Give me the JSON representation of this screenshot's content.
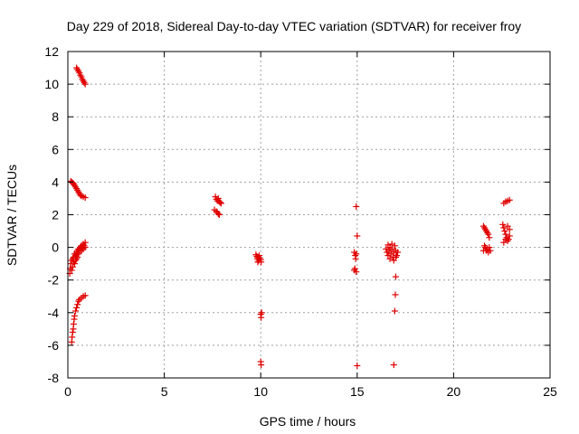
{
  "chart_data": {
    "type": "scatter",
    "title": "Day 229 of 2018, Sidereal Day-to-day VTEC variation (SDTVAR) for receiver froy",
    "xlabel": "GPS time / hours",
    "ylabel": "SDTVAR / TECUs",
    "xlim": [
      0,
      25
    ],
    "ylim": [
      -8,
      12
    ],
    "xticks": [
      0,
      5,
      10,
      15,
      20,
      25
    ],
    "yticks": [
      -8,
      -6,
      -4,
      -2,
      0,
      2,
      4,
      6,
      8,
      10,
      12
    ],
    "xtick_labels": [
      "0",
      "5",
      "10",
      "15",
      "20",
      "25"
    ],
    "ytick_labels": [
      "-8",
      "-6",
      "-4",
      "-2",
      "0",
      "2",
      "4",
      "6",
      "8",
      "10",
      "12"
    ],
    "grid": true,
    "marker": "+",
    "color": "#e00000",
    "series": [
      {
        "name": "froy",
        "points": [
          [
            0.45,
            11.0
          ],
          [
            0.5,
            10.9
          ],
          [
            0.55,
            10.8
          ],
          [
            0.6,
            10.7
          ],
          [
            0.65,
            10.55
          ],
          [
            0.7,
            10.45
          ],
          [
            0.75,
            10.3
          ],
          [
            0.8,
            10.2
          ],
          [
            0.85,
            10.1
          ],
          [
            0.9,
            10.0
          ],
          [
            0.15,
            4.05
          ],
          [
            0.2,
            4.0
          ],
          [
            0.25,
            3.95
          ],
          [
            0.3,
            3.9
          ],
          [
            0.35,
            3.8
          ],
          [
            0.4,
            3.7
          ],
          [
            0.45,
            3.6
          ],
          [
            0.5,
            3.5
          ],
          [
            0.55,
            3.4
          ],
          [
            0.6,
            3.3
          ],
          [
            0.65,
            3.2
          ],
          [
            0.7,
            3.15
          ],
          [
            0.8,
            3.1
          ],
          [
            0.9,
            3.05
          ],
          [
            0.1,
            -1.6
          ],
          [
            0.12,
            -1.3
          ],
          [
            0.15,
            -1.0
          ],
          [
            0.18,
            -0.8
          ],
          [
            0.2,
            -1.4
          ],
          [
            0.25,
            -1.2
          ],
          [
            0.3,
            -0.9
          ],
          [
            0.3,
            -0.6
          ],
          [
            0.35,
            -1.0
          ],
          [
            0.4,
            -0.5
          ],
          [
            0.4,
            -0.8
          ],
          [
            0.45,
            -0.3
          ],
          [
            0.5,
            -0.6
          ],
          [
            0.5,
            -0.2
          ],
          [
            0.55,
            -0.4
          ],
          [
            0.6,
            -0.1
          ],
          [
            0.6,
            -0.3
          ],
          [
            0.65,
            0.0
          ],
          [
            0.7,
            -0.2
          ],
          [
            0.7,
            0.1
          ],
          [
            0.75,
            0.0
          ],
          [
            0.8,
            0.2
          ],
          [
            0.8,
            -0.1
          ],
          [
            0.85,
            0.1
          ],
          [
            0.9,
            0.3
          ],
          [
            0.9,
            0.0
          ],
          [
            0.25,
            -0.7
          ],
          [
            0.35,
            -0.4
          ],
          [
            0.45,
            -0.7
          ],
          [
            0.55,
            -0.1
          ],
          [
            0.2,
            -5.8
          ],
          [
            0.22,
            -5.5
          ],
          [
            0.25,
            -5.2
          ],
          [
            0.28,
            -5.0
          ],
          [
            0.3,
            -4.7
          ],
          [
            0.33,
            -4.4
          ],
          [
            0.35,
            -4.2
          ],
          [
            0.4,
            -3.9
          ],
          [
            0.45,
            -3.7
          ],
          [
            0.5,
            -3.5
          ],
          [
            0.55,
            -3.3
          ],
          [
            0.6,
            -3.2
          ],
          [
            0.7,
            -3.1
          ],
          [
            0.8,
            -3.0
          ],
          [
            0.9,
            -2.95
          ],
          [
            7.65,
            3.1
          ],
          [
            7.7,
            2.95
          ],
          [
            7.75,
            2.85
          ],
          [
            7.8,
            3.0
          ],
          [
            7.85,
            2.8
          ],
          [
            7.9,
            2.75
          ],
          [
            7.95,
            2.7
          ],
          [
            7.6,
            2.3
          ],
          [
            7.7,
            2.2
          ],
          [
            7.75,
            2.15
          ],
          [
            7.8,
            2.05
          ],
          [
            7.85,
            2.0
          ],
          [
            9.75,
            -0.45
          ],
          [
            9.8,
            -0.55
          ],
          [
            9.82,
            -0.7
          ],
          [
            9.85,
            -0.6
          ],
          [
            9.9,
            -0.8
          ],
          [
            9.92,
            -0.5
          ],
          [
            9.95,
            -0.65
          ],
          [
            10.0,
            -0.75
          ],
          [
            10.02,
            -0.9
          ],
          [
            9.85,
            -0.9
          ],
          [
            10.0,
            -4.1
          ],
          [
            10.02,
            -4.3
          ],
          [
            10.05,
            -4.0
          ],
          [
            10.0,
            -7.0
          ],
          [
            10.02,
            -7.2
          ],
          [
            14.95,
            2.5
          ],
          [
            15.0,
            0.7
          ],
          [
            14.85,
            -0.3
          ],
          [
            14.9,
            -0.5
          ],
          [
            14.92,
            -0.7
          ],
          [
            14.95,
            -0.4
          ],
          [
            14.88,
            -1.3
          ],
          [
            14.95,
            -1.5
          ],
          [
            14.85,
            -1.4
          ],
          [
            15.0,
            -7.25
          ],
          [
            16.5,
            -0.1
          ],
          [
            16.55,
            -0.3
          ],
          [
            16.6,
            -0.5
          ],
          [
            16.65,
            -0.2
          ],
          [
            16.7,
            0.0
          ],
          [
            16.75,
            -0.4
          ],
          [
            16.8,
            -0.1
          ],
          [
            16.85,
            -0.6
          ],
          [
            16.9,
            -0.3
          ],
          [
            16.95,
            0.1
          ],
          [
            17.0,
            -0.2
          ],
          [
            17.05,
            -0.5
          ],
          [
            16.6,
            0.15
          ],
          [
            16.7,
            -0.7
          ],
          [
            16.8,
            0.2
          ],
          [
            16.9,
            -0.8
          ],
          [
            17.0,
            -0.6
          ],
          [
            17.1,
            -0.3
          ],
          [
            17.0,
            -1.8
          ],
          [
            16.98,
            -2.9
          ],
          [
            16.95,
            -3.9
          ],
          [
            16.9,
            -7.2
          ],
          [
            21.55,
            1.3
          ],
          [
            21.6,
            1.2
          ],
          [
            21.65,
            1.1
          ],
          [
            21.7,
            1.0
          ],
          [
            21.75,
            0.9
          ],
          [
            21.8,
            0.8
          ],
          [
            21.85,
            0.6
          ],
          [
            21.6,
            0.1
          ],
          [
            21.65,
            0.0
          ],
          [
            21.7,
            -0.2
          ],
          [
            21.75,
            -0.1
          ],
          [
            21.8,
            -0.3
          ],
          [
            21.55,
            -0.2
          ],
          [
            21.85,
            0.0
          ],
          [
            21.9,
            -0.2
          ],
          [
            22.6,
            2.7
          ],
          [
            22.7,
            2.8
          ],
          [
            22.8,
            2.85
          ],
          [
            22.9,
            2.9
          ],
          [
            22.55,
            1.4
          ],
          [
            22.6,
            1.2
          ],
          [
            22.65,
            1.0
          ],
          [
            22.7,
            0.8
          ],
          [
            22.75,
            0.6
          ],
          [
            22.8,
            0.4
          ],
          [
            22.85,
            0.5
          ],
          [
            22.9,
            0.7
          ],
          [
            22.6,
            0.3
          ],
          [
            22.7,
            0.5
          ],
          [
            22.8,
            1.3
          ],
          [
            22.9,
            1.1
          ]
        ]
      }
    ]
  }
}
